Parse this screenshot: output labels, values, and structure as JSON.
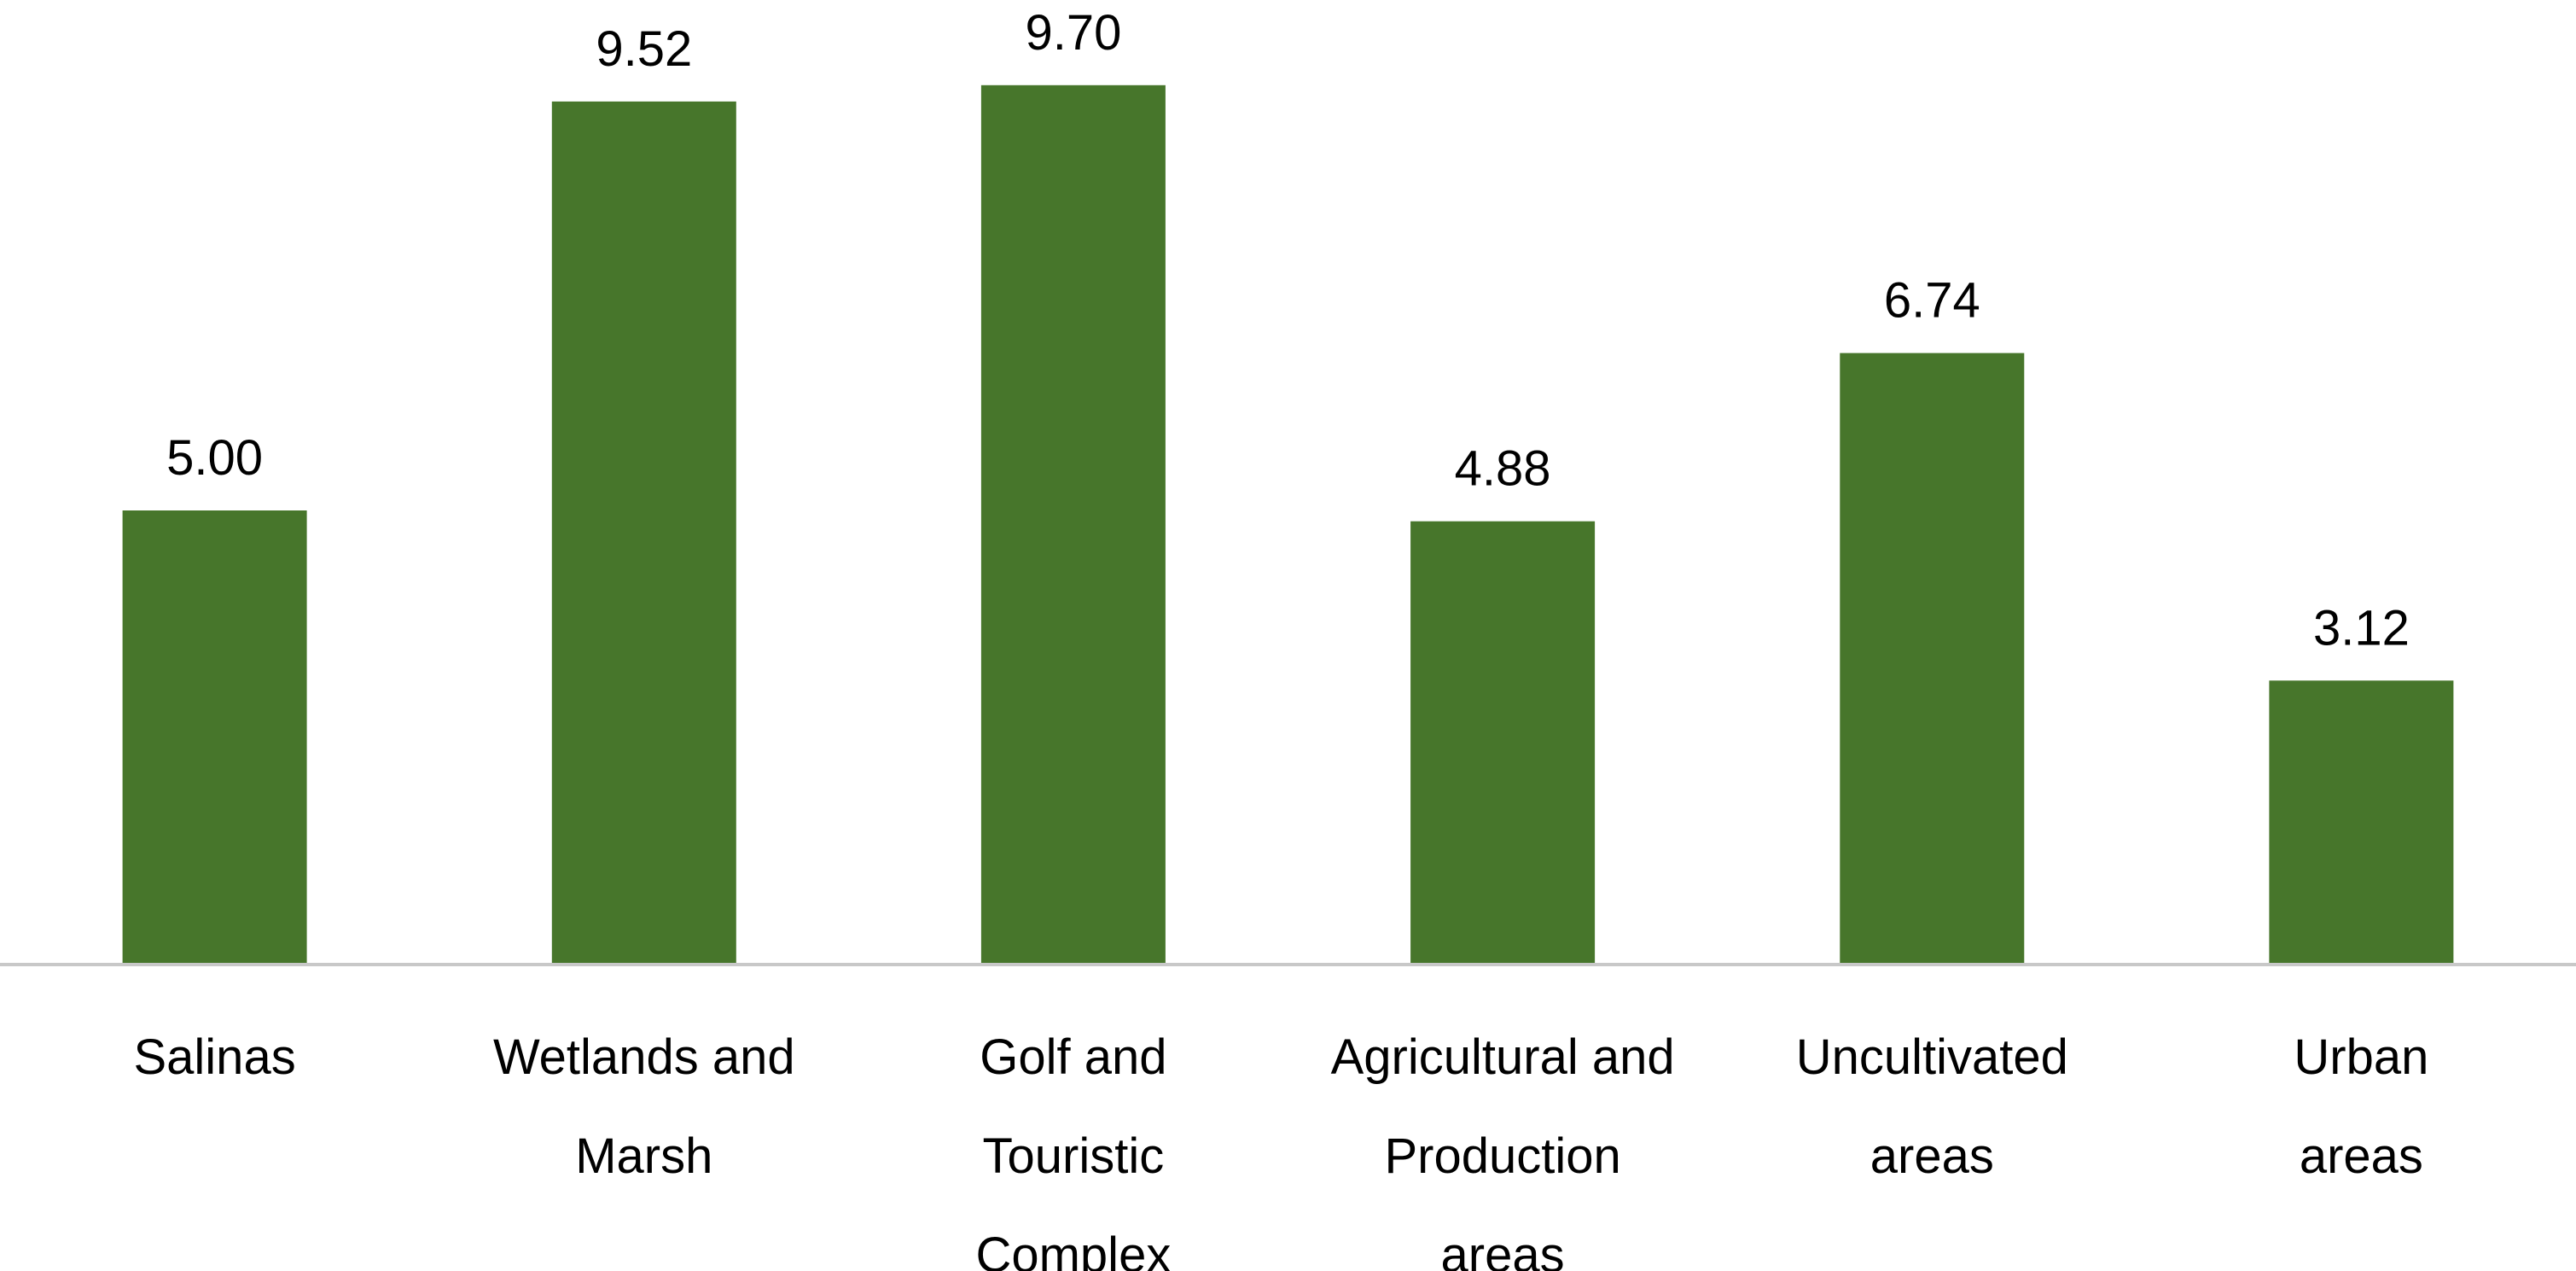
{
  "chart_data": {
    "type": "bar",
    "title": "",
    "xlabel": "",
    "ylabel": "",
    "ylim": [
      0,
      10.5
    ],
    "grid": false,
    "legend": "none",
    "bar_color": "#47762b",
    "axis_color": "#c8c8c8",
    "categories": [
      "Salinas",
      "Wetlands and Marsh",
      "Golf and Touristic Complex",
      "Agricultural and Production areas",
      "Uncultivated areas",
      "Urban areas"
    ],
    "category_lines": [
      [
        "Salinas"
      ],
      [
        "Wetlands and",
        "Marsh"
      ],
      [
        "Golf and",
        "Touristic",
        "Complex"
      ],
      [
        "Agricultural and",
        "Production",
        "areas"
      ],
      [
        "Uncultivated",
        "areas"
      ],
      [
        "Urban",
        "areas"
      ]
    ],
    "values": [
      5.0,
      9.52,
      9.7,
      4.88,
      6.74,
      3.12
    ],
    "value_labels": [
      "5.00",
      "9.52",
      "9.70",
      "4.88",
      "6.74",
      "3.12"
    ]
  }
}
